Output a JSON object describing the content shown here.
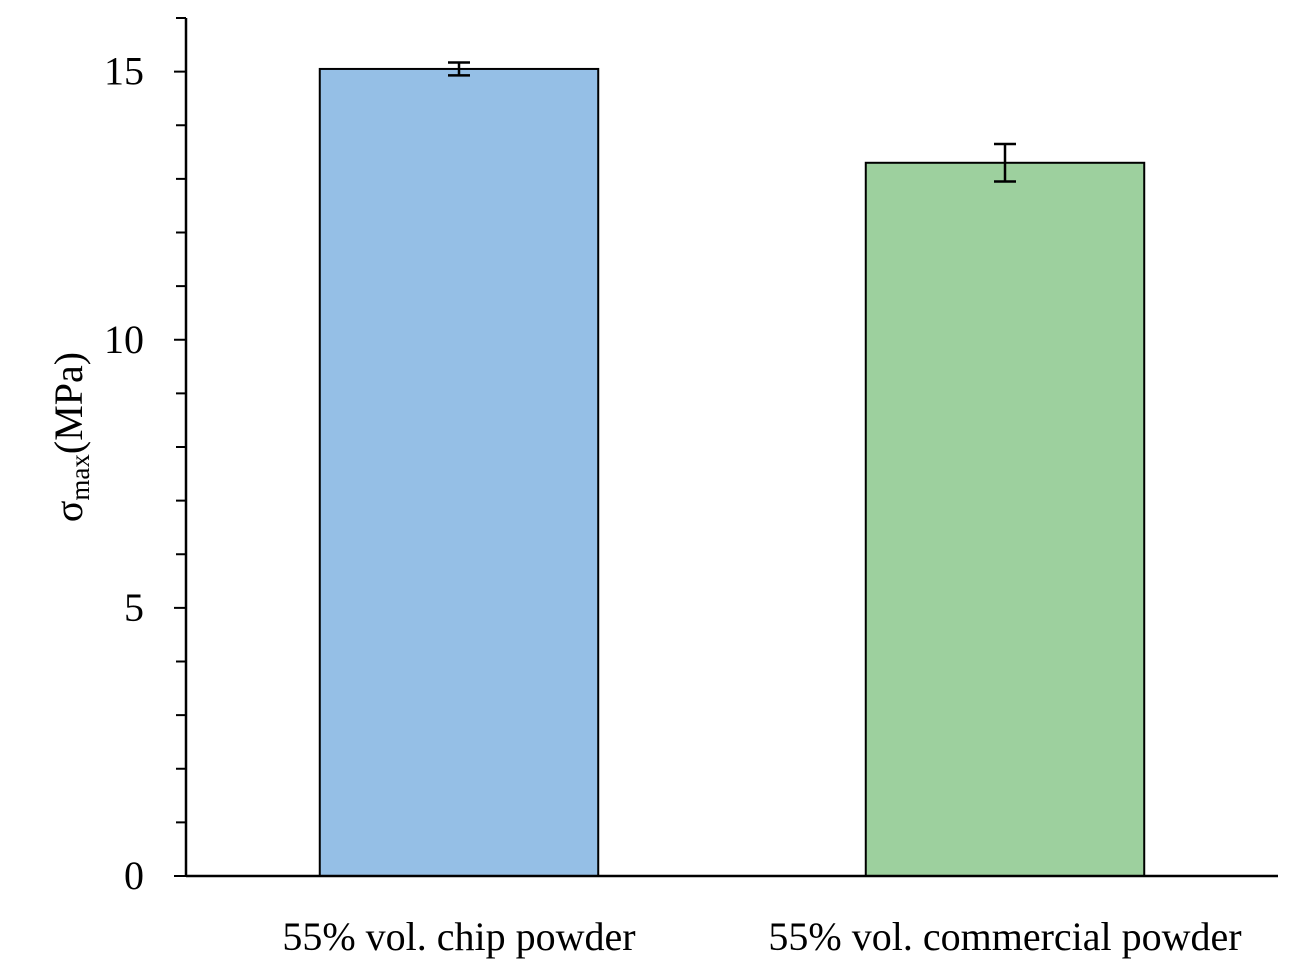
{
  "chart_data": {
    "type": "bar",
    "title": "",
    "categories": [
      "55% vol. chip powder",
      "55% vol. commercial powder"
    ],
    "values": [
      15.05,
      13.3
    ],
    "errors": [
      0.12,
      0.35
    ],
    "colors": [
      "#95bfe6",
      "#9dd09e"
    ],
    "ylabel": {
      "symbol": "σ",
      "subscript": "max",
      "unit": "(MPa)"
    },
    "xlabel": "",
    "ylim": [
      0,
      16
    ],
    "yticks": [
      0,
      5,
      10,
      15
    ],
    "ytick_labels": [
      "0",
      "5",
      "10",
      "15"
    ],
    "y_minor_step": 1,
    "grid": false,
    "legend": "none"
  }
}
